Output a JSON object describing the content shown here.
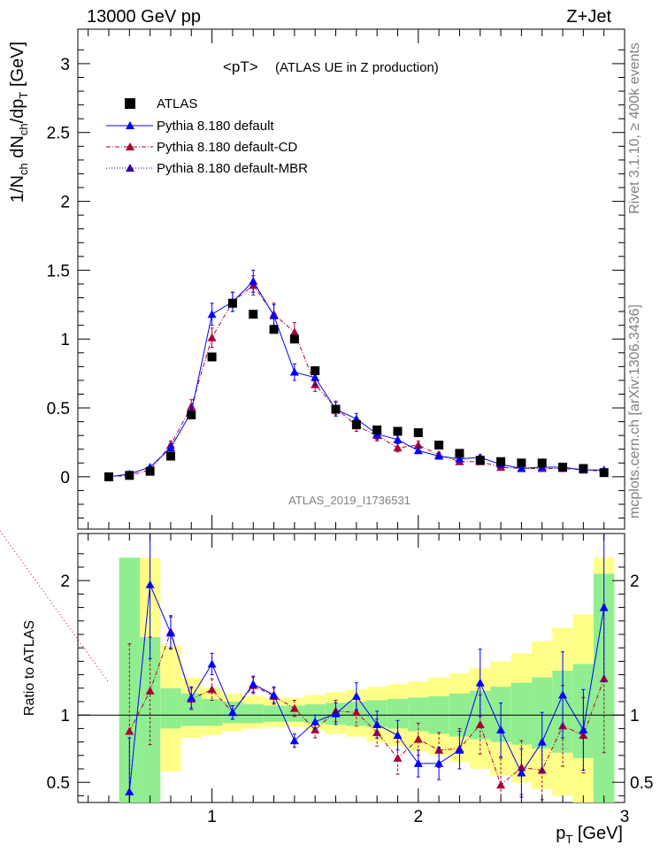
{
  "header": {
    "left": "13000 GeV pp",
    "right": "Z+Jet",
    "side_top": "Rivet 3.1.10, ≥ 400k events",
    "side_bottom": "mcplots.cern.ch [arXiv:1306.3436]",
    "analysis_id": "ATLAS_2019_I1736531"
  },
  "chart_data": [
    {
      "type": "scatter",
      "title": "<pT>",
      "subtitle": "(ATLAS UE in Z production)",
      "xlabel": "p_T [GeV]",
      "ylabel": "1/N_ch dN_ch/dp_T [GeV]",
      "xlim": [
        0.35,
        3.0
      ],
      "ylim": [
        -0.38,
        3.25
      ],
      "yticks": [
        0,
        0.5,
        1,
        1.5,
        2,
        2.5,
        3
      ],
      "ytick_labels": [
        "0",
        "0.5",
        "1",
        "1.5",
        "2",
        "2.5",
        "3"
      ],
      "legend_position": "top-left",
      "x": [
        0.5,
        0.6,
        0.7,
        0.8,
        0.9,
        1.0,
        1.1,
        1.2,
        1.3,
        1.4,
        1.5,
        1.6,
        1.7,
        1.8,
        1.9,
        2.0,
        2.1,
        2.2,
        2.3,
        2.4,
        2.5,
        2.6,
        2.7,
        2.8,
        2.9
      ],
      "series": [
        {
          "name": "ATLAS",
          "color": "#000000",
          "marker": "square",
          "values": [
            0.0,
            0.01,
            0.04,
            0.15,
            0.45,
            0.87,
            1.26,
            1.18,
            1.07,
            1.0,
            0.77,
            0.49,
            0.38,
            0.34,
            0.33,
            0.32,
            0.23,
            0.17,
            0.12,
            0.11,
            0.1,
            0.1,
            0.07,
            0.06,
            0.03
          ]
        },
        {
          "name": "Pythia 8.180 default",
          "color": "#0000ff",
          "marker": "triangle",
          "line": "solid",
          "values": [
            0.0,
            0.02,
            0.07,
            0.21,
            0.47,
            1.18,
            1.27,
            1.42,
            1.17,
            0.76,
            0.72,
            0.49,
            0.42,
            0.31,
            0.27,
            0.19,
            0.15,
            0.13,
            0.14,
            0.09,
            0.06,
            0.07,
            0.07,
            0.05,
            0.05
          ],
          "errors": [
            0.01,
            0.01,
            0.01,
            0.03,
            0.05,
            0.08,
            0.07,
            0.08,
            0.08,
            0.06,
            0.05,
            0.05,
            0.04,
            0.04,
            0.03,
            0.02,
            0.02,
            0.02,
            0.02,
            0.02,
            0.01,
            0.01,
            0.01,
            0.01,
            0.01
          ]
        },
        {
          "name": "Pythia 8.180 default-CD",
          "color": "#aa0033",
          "marker": "triangle",
          "line": "dashdot",
          "values": [
            0.0,
            0.01,
            0.05,
            0.23,
            0.51,
            1.01,
            1.27,
            1.39,
            1.18,
            1.05,
            0.67,
            0.5,
            0.37,
            0.3,
            0.21,
            0.23,
            0.16,
            0.11,
            0.11,
            0.07,
            0.06,
            0.06,
            0.06,
            0.05,
            0.04
          ],
          "errors": [
            0.01,
            0.01,
            0.01,
            0.03,
            0.05,
            0.07,
            0.07,
            0.07,
            0.08,
            0.07,
            0.05,
            0.05,
            0.04,
            0.04,
            0.03,
            0.03,
            0.02,
            0.02,
            0.02,
            0.01,
            0.01,
            0.01,
            0.01,
            0.01,
            0.01
          ]
        },
        {
          "name": "Pythia 8.180 default-MBR",
          "color": "#3300aa",
          "marker": "triangle",
          "line": "dotted",
          "values": []
        }
      ]
    },
    {
      "type": "scatter",
      "title": "",
      "xlabel": "p_T [GeV]",
      "ylabel": "Ratio to ATLAS",
      "xlim": [
        0.35,
        3.0
      ],
      "ylim": [
        0.35,
        2.35
      ],
      "yticks": [
        0.5,
        1,
        2
      ],
      "ytick_labels": [
        "0.5",
        "1",
        "2"
      ],
      "xticks": [
        1,
        2,
        3
      ],
      "xtick_labels": [
        "1",
        "2",
        "3"
      ],
      "reference_line": 1,
      "bands": {
        "bin_edges": [
          0.45,
          0.55,
          0.65,
          0.75,
          0.85,
          0.95,
          1.05,
          1.15,
          1.25,
          1.35,
          1.45,
          1.55,
          1.65,
          1.75,
          1.85,
          1.95,
          2.05,
          2.15,
          2.25,
          2.35,
          2.45,
          2.55,
          2.65,
          2.75,
          2.85,
          2.95
        ],
        "stat_low": [
          1.0,
          0.35,
          0.35,
          0.9,
          0.92,
          0.92,
          0.94,
          0.94,
          0.95,
          0.95,
          0.94,
          0.93,
          0.92,
          0.91,
          0.9,
          0.88,
          0.86,
          0.84,
          0.82,
          0.8,
          0.78,
          0.75,
          0.72,
          0.68,
          0.35
        ],
        "stat_high": [
          1.0,
          2.17,
          1.58,
          1.2,
          1.16,
          1.12,
          1.1,
          1.08,
          1.07,
          1.07,
          1.08,
          1.09,
          1.1,
          1.11,
          1.12,
          1.13,
          1.14,
          1.16,
          1.18,
          1.21,
          1.24,
          1.28,
          1.33,
          1.38,
          2.05
        ],
        "total_low": [
          1.0,
          0.35,
          0.35,
          0.58,
          0.83,
          0.85,
          0.88,
          0.9,
          0.91,
          0.91,
          0.89,
          0.86,
          0.84,
          0.8,
          0.77,
          0.73,
          0.7,
          0.65,
          0.6,
          0.55,
          0.5,
          0.45,
          0.4,
          0.35,
          0.35
        ],
        "total_high": [
          1.0,
          2.17,
          2.17,
          1.52,
          1.28,
          1.2,
          1.16,
          1.14,
          1.13,
          1.13,
          1.15,
          1.17,
          1.19,
          1.21,
          1.23,
          1.25,
          1.28,
          1.31,
          1.35,
          1.4,
          1.46,
          1.55,
          1.65,
          1.75,
          2.17
        ],
        "stat_color": "#90ee90",
        "total_color": "#ffff88"
      },
      "series": [
        {
          "name": "Pythia 8.180 default",
          "color": "#0000ff",
          "values": [
            null,
            0.43,
            1.97,
            1.61,
            1.13,
            1.38,
            1.02,
            1.23,
            1.15,
            0.81,
            0.95,
            1.01,
            1.14,
            0.93,
            0.85,
            0.64,
            0.64,
            0.74,
            1.24,
            0.89,
            0.57,
            0.8,
            1.15,
            0.89,
            1.8
          ],
          "errors": [
            0,
            0.4,
            0.55,
            0.12,
            0.08,
            0.08,
            0.05,
            0.06,
            0.06,
            0.05,
            0.05,
            0.08,
            0.1,
            0.1,
            0.11,
            0.1,
            0.12,
            0.14,
            0.25,
            0.2,
            0.18,
            0.22,
            0.32,
            0.3,
            0.55
          ]
        },
        {
          "name": "Pythia 8.180 default-CD",
          "color": "#aa0033",
          "values": [
            null,
            0.88,
            1.18,
            1.62,
            1.12,
            1.19,
            1.02,
            1.22,
            1.14,
            1.05,
            0.89,
            1.03,
            1.02,
            0.87,
            0.68,
            0.82,
            0.74,
            0.75,
            0.93,
            0.48,
            0.61,
            0.59,
            0.92,
            0.85,
            1.27
          ],
          "errors": [
            0,
            0.65,
            0.4,
            0.12,
            0.08,
            0.08,
            0.05,
            0.06,
            0.06,
            0.06,
            0.06,
            0.08,
            0.1,
            0.1,
            0.12,
            0.12,
            0.13,
            0.15,
            0.22,
            0.2,
            0.2,
            0.22,
            0.3,
            0.28,
            0.55
          ]
        }
      ]
    }
  ]
}
